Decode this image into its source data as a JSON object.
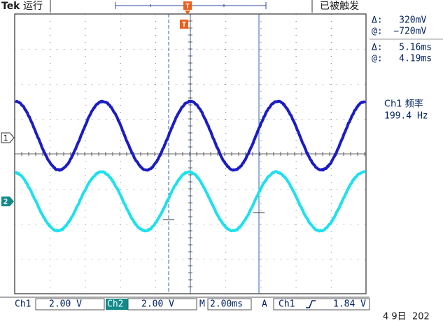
{
  "header": {
    "brand": "Tek",
    "status": "运行",
    "trigger_state": "已被触发",
    "trigger_marker": "T"
  },
  "cursor_readout": [
    "Δ:   320mV",
    "@:  −720mV",
    "Δ:   5.16ms",
    "@:   4.19ms"
  ],
  "measurement": {
    "label": "Ch1 频率",
    "value": "199.4 Hz"
  },
  "channel_markers": [
    "1",
    "2"
  ],
  "footer": {
    "ch1": "Ch1",
    "ch1_scale": "2.00 V",
    "ch2": "Ch2",
    "ch2_scale": "2.00 V",
    "time_label": "M",
    "time_scale": "2.00ms",
    "trigger_label": "A",
    "trigger_source": "Ch1",
    "trigger_level": "1.84 V",
    "date": "4 9日  202"
  }
}
